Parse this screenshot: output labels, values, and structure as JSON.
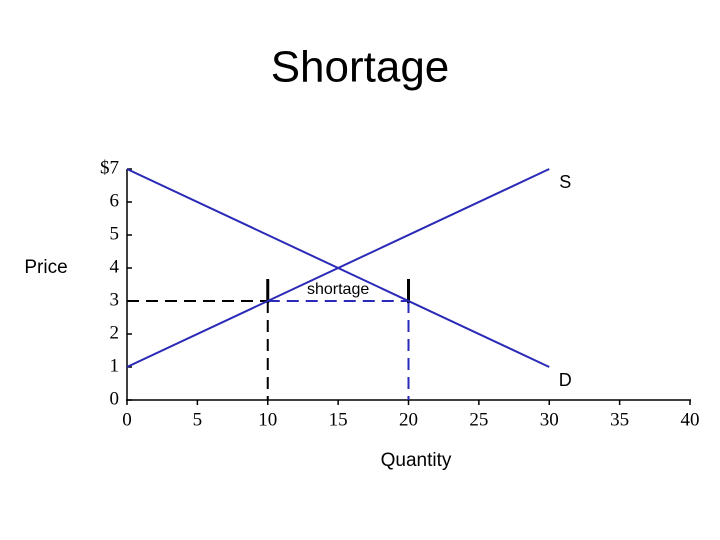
{
  "chart_data": {
    "type": "line",
    "title": "Shortage",
    "x_label": "Quantity",
    "y_label": "Price",
    "xlim": [
      0,
      40
    ],
    "ylim": [
      0,
      7
    ],
    "xticks": [
      0,
      5,
      10,
      15,
      20,
      25,
      30,
      35,
      40
    ],
    "yticks": [
      0,
      1,
      2,
      3,
      4,
      5,
      6,
      {
        "value": 7,
        "label": "$7"
      }
    ],
    "series": [
      {
        "name": "S",
        "color": "#2a2ab8",
        "x": [
          0,
          30
        ],
        "values": [
          1,
          7
        ]
      },
      {
        "name": "D",
        "color": "#2a2ab8",
        "x": [
          0,
          30
        ],
        "values": [
          7,
          1
        ]
      }
    ],
    "annotations": [
      {
        "text": "shortage",
        "x": [
          10,
          20
        ],
        "y": 3
      }
    ]
  }
}
